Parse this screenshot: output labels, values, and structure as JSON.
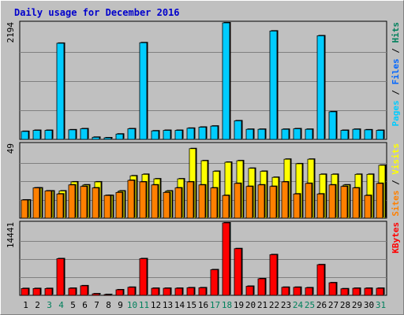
{
  "chart_data": {
    "type": "bar",
    "title": "Daily usage for December 2016",
    "days": [
      "1",
      "2",
      "3",
      "4",
      "5",
      "6",
      "7",
      "8",
      "9",
      "10",
      "11",
      "12",
      "13",
      "14",
      "15",
      "16",
      "17",
      "18",
      "19",
      "20",
      "21",
      "22",
      "23",
      "24",
      "25",
      "26",
      "27",
      "28",
      "29",
      "30",
      "31"
    ],
    "weekend_days": [
      "3",
      "4",
      "10",
      "11",
      "17",
      "18",
      "24",
      "25",
      "31"
    ],
    "colors": {
      "background": "#c0c0c0",
      "pages": "#00ccff",
      "files": "#0066ff",
      "hits": "#00805c",
      "sites": "#ff8000",
      "visits": "#ffff00",
      "kbytes": "#ff0000",
      "weekend_label": "#00805c",
      "weekday_label": "#000000"
    },
    "panels": [
      {
        "id": "requests",
        "ymax_label": "2194",
        "ymax": 2194,
        "side_labels": [
          {
            "text": "Pages",
            "color": "#00ccff"
          },
          {
            "text": " / ",
            "color": "#000000"
          },
          {
            "text": "Files",
            "color": "#0066ff"
          },
          {
            "text": " / ",
            "color": "#000000"
          },
          {
            "text": "Hits",
            "color": "#00805c"
          }
        ],
        "series": [
          {
            "name": "Pages",
            "color": "#00ccff",
            "values": [
              150,
              170,
              170,
              1810,
              180,
              200,
              40,
              30,
              100,
              200,
              1820,
              160,
              170,
              170,
              210,
              230,
              250,
              2194,
              350,
              190,
              190,
              2040,
              190,
              200,
              190,
              1950,
              520,
              170,
              190,
              180,
              170
            ]
          }
        ]
      },
      {
        "id": "visitors",
        "ymax_label": "49",
        "ymax": 49,
        "side_labels": [
          {
            "text": "Sites",
            "color": "#ff8000"
          },
          {
            "text": " / ",
            "color": "#000000"
          },
          {
            "text": "Visits",
            "color": "#ffff00"
          }
        ],
        "series": [
          {
            "name": "Visits",
            "color": "#ffff00",
            "values": [
              12,
              20,
              18,
              18,
              24,
              22,
              24,
              15,
              18,
              28,
              29,
              26,
              18,
              26,
              46,
              38,
              31,
              37,
              38,
              33,
              31,
              27,
              39,
              36,
              39,
              29,
              29,
              22,
              29,
              29,
              35
            ]
          },
          {
            "name": "Sites",
            "color": "#ff8000",
            "values": [
              12,
              20,
              18,
              16,
              22,
              21,
              20,
              15,
              17,
              25,
              24,
              22,
              17,
              20,
              24,
              22,
              20,
              15,
              23,
              21,
              22,
              21,
              24,
              16,
              23,
              16,
              22,
              21,
              20,
              15,
              23
            ]
          }
        ]
      },
      {
        "id": "traffic",
        "ymax_label": "14441",
        "ymax": 14441,
        "side_labels": [
          {
            "text": "KBytes",
            "color": "#ff0000"
          }
        ],
        "series": [
          {
            "name": "KBytes",
            "color": "#ff0000",
            "values": [
              1350,
              1350,
              1350,
              7300,
              1400,
              1900,
              300,
              150,
              1100,
              1600,
              7300,
              1400,
              1400,
              1400,
              1500,
              1500,
              5100,
              14441,
              9300,
              1800,
              3300,
              8100,
              1600,
              1600,
              1500,
              6100,
              2500,
              1300,
              1400,
              1400,
              1400
            ]
          }
        ]
      }
    ]
  }
}
